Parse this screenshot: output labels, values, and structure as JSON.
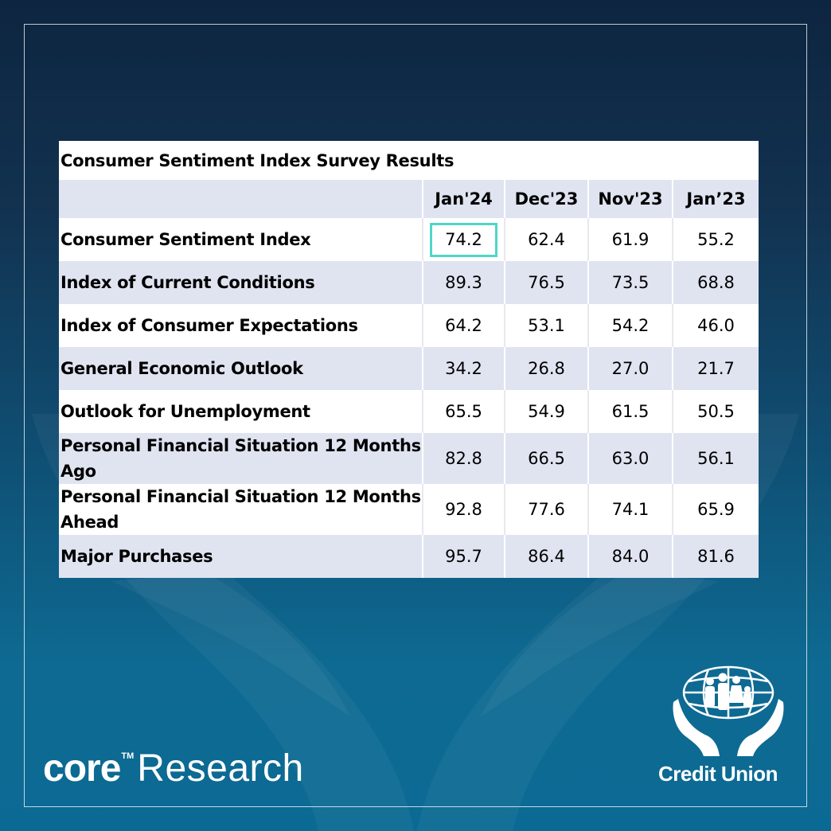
{
  "chart_data": {
    "type": "table",
    "title": "Consumer Sentiment Index Survey Results",
    "columns": [
      "Jan'24",
      "Dec'23",
      "Nov'23",
      "Jan’23"
    ],
    "rows": [
      {
        "label": "Consumer Sentiment Index",
        "values": [
          "74.2",
          "62.4",
          "61.9",
          "55.2"
        ]
      },
      {
        "label": "Index of Current Conditions",
        "values": [
          "89.3",
          "76.5",
          "73.5",
          "68.8"
        ]
      },
      {
        "label": "Index of Consumer Expectations",
        "values": [
          "64.2",
          "53.1",
          "54.2",
          "46.0"
        ]
      },
      {
        "label": "General Economic Outlook",
        "values": [
          "34.2",
          "26.8",
          "27.0",
          "21.7"
        ]
      },
      {
        "label": "Outlook for Unemployment",
        "values": [
          "65.5",
          "54.9",
          "61.5",
          "50.5"
        ]
      },
      {
        "label": "Personal Financial Situation 12 Months Ago",
        "values": [
          "82.8",
          "66.5",
          "63.0",
          "56.1"
        ]
      },
      {
        "label": "Personal Financial Situation 12 Months Ahead",
        "values": [
          "92.8",
          "77.6",
          "74.1",
          "65.9"
        ]
      },
      {
        "label": "Major Purchases",
        "values": [
          "95.7",
          "86.4",
          "84.0",
          "81.6"
        ]
      }
    ],
    "highlighted_cell": {
      "row": 0,
      "column": 0
    }
  },
  "branding": {
    "core_word": "core",
    "trademark": "TM",
    "research_word": "Research",
    "credit_union_text": "Credit Union"
  },
  "colors": {
    "highlight_border": "#4fd6c8",
    "row_shade": "#e0e4f1",
    "background_top": "#0d2540",
    "background_bottom": "#0b6a94"
  }
}
